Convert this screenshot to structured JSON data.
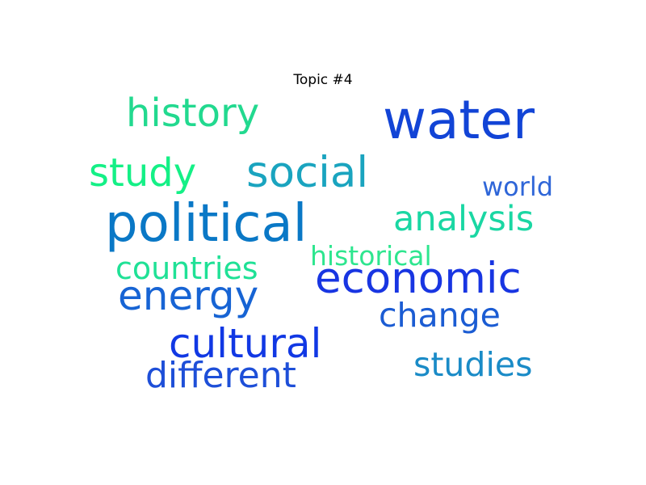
{
  "title": "Topic #4",
  "words": {
    "water": {
      "text": "water",
      "color": "#1244d6"
    },
    "history": {
      "text": "history",
      "color": "#22d98f"
    },
    "study": {
      "text": "study",
      "color": "#14f086"
    },
    "social": {
      "text": "social",
      "color": "#1aa4bf"
    },
    "world": {
      "text": "world",
      "color": "#2f66d8"
    },
    "political": {
      "text": "political",
      "color": "#0a78c6"
    },
    "analysis": {
      "text": "analysis",
      "color": "#1ad7a3"
    },
    "historical": {
      "text": "historical",
      "color": "#2ee68f"
    },
    "countries": {
      "text": "countries",
      "color": "#1fe196"
    },
    "economic": {
      "text": "economic",
      "color": "#1835e2"
    },
    "energy": {
      "text": "energy",
      "color": "#1764d4"
    },
    "change": {
      "text": "change",
      "color": "#1b5cd3"
    },
    "cultural": {
      "text": "cultural",
      "color": "#1138e4"
    },
    "studies": {
      "text": "studies",
      "color": "#1a8bc7"
    },
    "different": {
      "text": "different",
      "color": "#1e4fd8"
    }
  }
}
